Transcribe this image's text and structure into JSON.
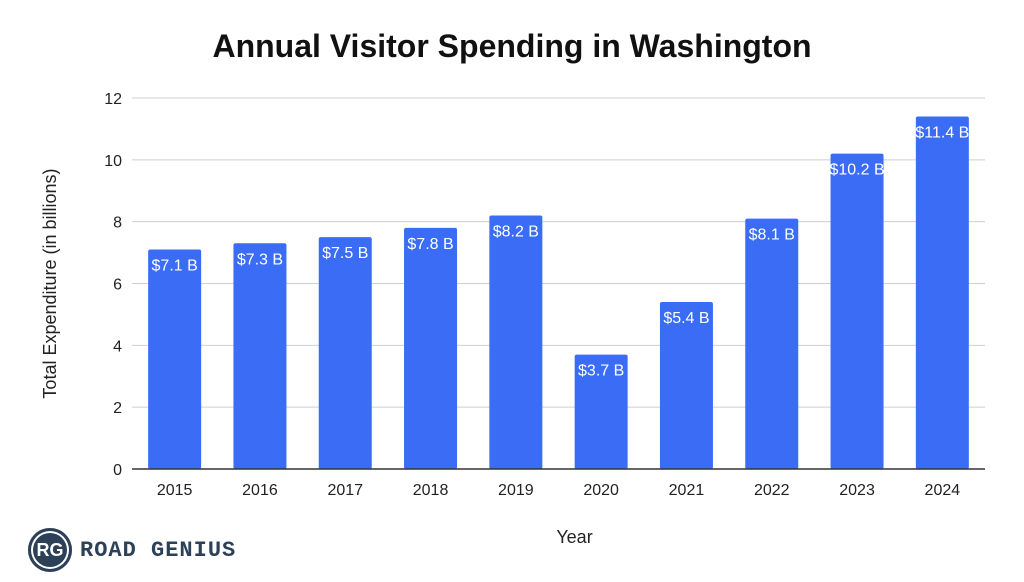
{
  "chart_data": {
    "type": "bar",
    "title": "Annual Visitor Spending in Washington",
    "xlabel": "Year",
    "ylabel": "Total Expenditure (in billions)",
    "categories": [
      "2015",
      "2016",
      "2017",
      "2018",
      "2019",
      "2020",
      "2021",
      "2022",
      "2023",
      "2024"
    ],
    "values": [
      7.1,
      7.3,
      7.5,
      7.8,
      8.2,
      3.7,
      5.4,
      8.1,
      10.2,
      11.4
    ],
    "data_labels": [
      "$7.1 B",
      "$7.3 B",
      "$7.5 B",
      "$7.8 B",
      "$8.2 B",
      "$3.7 B",
      "$5.4 B",
      "$8.1 B",
      "$10.2 B",
      "$11.4 B"
    ],
    "ylim": [
      0,
      12
    ],
    "yticks": [
      0,
      2,
      4,
      6,
      8,
      10,
      12
    ],
    "grid": true,
    "bar_color": "#3b6cf6"
  },
  "brand": {
    "badge_text": "RG",
    "name": "ROAD GENIUS"
  }
}
